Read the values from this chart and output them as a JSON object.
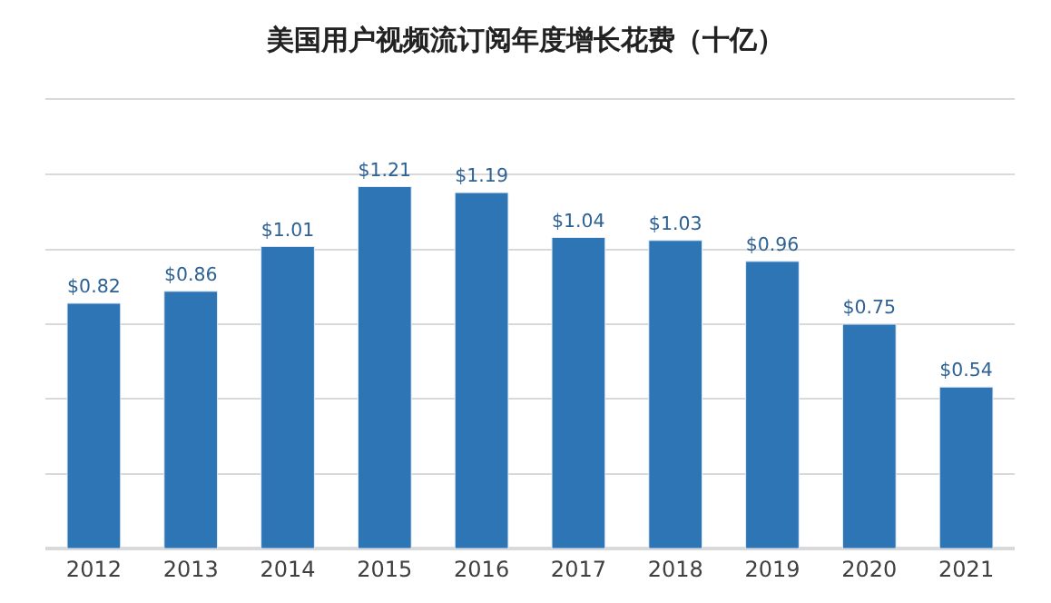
{
  "chart_data": {
    "type": "bar",
    "title": "美国用户视频流订阅年度增长花费（十亿）",
    "categories": [
      "2012",
      "2013",
      "2014",
      "2015",
      "2016",
      "2017",
      "2018",
      "2019",
      "2020",
      "2021"
    ],
    "values": [
      0.82,
      0.86,
      1.01,
      1.21,
      1.19,
      1.04,
      1.03,
      0.96,
      0.75,
      0.54
    ],
    "value_labels": [
      "$0.82",
      "$0.86",
      "$1.01",
      "$1.21",
      "$1.19",
      "$1.04",
      "$1.03",
      "$0.96",
      "$0.75",
      "$0.54"
    ],
    "color": "#2e75b6",
    "ylim": [
      0,
      1.5
    ],
    "yticks": [
      {
        "value": 0,
        "label": null
      },
      {
        "value": 0.25,
        "label": null
      },
      {
        "value": 0.5,
        "label": null
      },
      {
        "value": 0.75,
        "label": null
      },
      {
        "value": 1.0,
        "label": null
      },
      {
        "value": 1.25,
        "label": null
      },
      {
        "value": 1.5,
        "label": null
      }
    ],
    "grid": "y",
    "tick_labels": "x"
  }
}
